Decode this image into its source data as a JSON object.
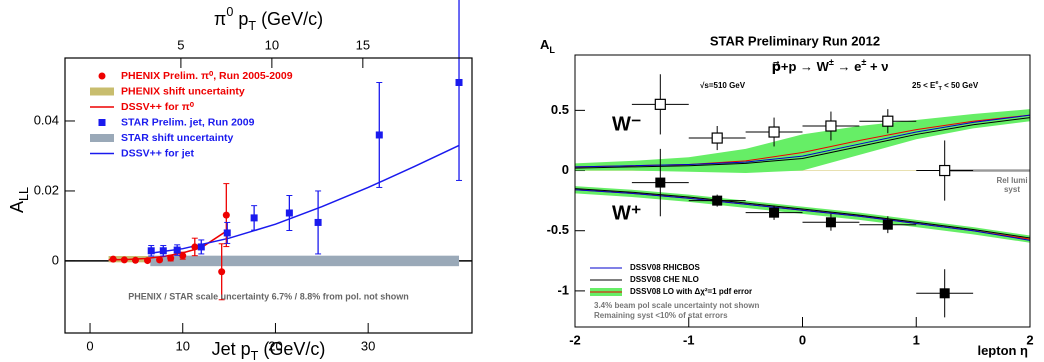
{
  "chart_data": [
    {
      "type": "scatter",
      "xlabel": {
        "text": "Jet p",
        "sub": "T",
        "tail": " (GeV/c)"
      },
      "x2label": {
        "text": "π",
        "sup": "0",
        "mid": " p",
        "sub": "T",
        "tail": " (GeV/c)"
      },
      "ylabel": {
        "text": "A",
        "sub": "LL"
      },
      "xlim": [
        -2.7,
        41.2
      ],
      "xticks": [
        0,
        10,
        20,
        30
      ],
      "x2lim": [
        -1.37,
        21.0
      ],
      "x2ticks": [
        5,
        10,
        15
      ],
      "ylim": [
        -0.0206,
        0.058
      ],
      "yticks": [
        0,
        0.02,
        0.04
      ],
      "zero_line": true,
      "zero_line_color": "#000000",
      "legend": "upper left",
      "note": "PHENIX / STAR scale uncertainty 6.7% / 8.8% from pol. not shown",
      "series": [
        {
          "name": "PHENIX Prelim. π⁰, Run 2005-2009",
          "kind": "points",
          "marker": "circle",
          "color": "#ee0000",
          "label_color": "#ee0000",
          "x": [
            2.5,
            3.7,
            4.9,
            6.2,
            7.5,
            8.7,
            10,
            11.3,
            14.2,
            14.7
          ],
          "values": [
            0.0005,
            0.0003,
            0.0002,
            0.0001,
            0.0003,
            0.0008,
            0.0015,
            0.004,
            -0.0031,
            0.0131
          ],
          "errors": [
            0.0002,
            0.0002,
            0.0003,
            0.0004,
            0.0005,
            0.0008,
            0.001,
            0.0025,
            0.008,
            0.009
          ]
        },
        {
          "name": "PHENIX shift uncertainty",
          "kind": "band",
          "color": "#c8bd6e",
          "label_color": "#ee0000",
          "x": [
            2,
            17.5
          ],
          "low": -0.0004,
          "high": 0.0014
        },
        {
          "name": "DSSV++ for π⁰",
          "kind": "line",
          "color": "#ee0000",
          "label_color": "#ee0000",
          "x": [
            2,
            4,
            6,
            8,
            10,
            12,
            14.7
          ],
          "values": [
            0.0003,
            0.0004,
            0.0007,
            0.0013,
            0.0023,
            0.0038,
            0.0085
          ]
        },
        {
          "name": "STAR Prelim. jet, Run 2009",
          "kind": "points",
          "marker": "square",
          "color": "#1a1aee",
          "label_color": "#1a1aee",
          "x": [
            6.6,
            7.9,
            9.4,
            12.0,
            14.8,
            17.7,
            21.5,
            24.6,
            31.2,
            39.8
          ],
          "values": [
            0.0029,
            0.0029,
            0.0031,
            0.004,
            0.008,
            0.0123,
            0.0137,
            0.011,
            0.036,
            0.051
          ],
          "errors": [
            0.0015,
            0.0015,
            0.0015,
            0.002,
            0.003,
            0.0035,
            0.005,
            0.009,
            0.015,
            0.028
          ]
        },
        {
          "name": "STAR shift uncertainty",
          "kind": "band",
          "color": "#9aa9b8",
          "label_color": "#1a1aee",
          "x": [
            6.5,
            39.8
          ],
          "low": -0.0015,
          "high": 0.0015
        },
        {
          "name": "DSSV++ for jet",
          "kind": "line",
          "color": "#1a1aee",
          "label_color": "#1a1aee",
          "x": [
            6.5,
            10,
            15,
            20,
            25,
            30,
            35,
            39.8
          ],
          "values": [
            0.0022,
            0.0035,
            0.0065,
            0.0105,
            0.0155,
            0.021,
            0.027,
            0.033
          ]
        }
      ]
    },
    {
      "type": "scatter",
      "title": "STAR   Preliminary   Run 2012",
      "xlabel": {
        "text": "lepton η"
      },
      "ylabel": {
        "text": "A",
        "sub": "L"
      },
      "reaction": {
        "text": "p⃗+p → W",
        "sup": "±",
        "mid": " → e",
        "sup2": "±",
        "tail": " + ν"
      },
      "energy": {
        "text": "√s=510 GeV"
      },
      "cut": {
        "text": "25 < E",
        "sup": "e",
        "sub": "T",
        "tail": " < 50 GeV"
      },
      "xlim": [
        -2,
        2
      ],
      "xticks": [
        -2,
        -1,
        0,
        1,
        2
      ],
      "ylim": [
        -1.3,
        0.96
      ],
      "yticks": [
        -1,
        -0.5,
        0,
        0.5
      ],
      "zero_line": true,
      "zero_line_color": "#e8e0b0",
      "legend": "lower left",
      "notes": [
        "3.4% beam pol scale uncertainty not shown",
        "Remaining syst <10% of stat errors"
      ],
      "rel_lumi": {
        "label": [
          "Rel lumi",
          "syst"
        ],
        "x": [
          1.3,
          2
        ],
        "low": -0.01,
        "high": 0.01,
        "color": "#999999"
      },
      "series": [
        {
          "name": "W⁻",
          "kind": "points",
          "marker": "open-square",
          "color": "#000000",
          "x": [
            -1.25,
            -0.75,
            -0.25,
            0.25,
            0.75,
            1.25
          ],
          "xerrors": [
            0.25,
            0.25,
            0.25,
            0.25,
            0.25,
            0.25
          ],
          "values": [
            0.55,
            0.27,
            0.32,
            0.37,
            0.41,
            0.0
          ],
          "errors": [
            0.25,
            0.1,
            0.12,
            0.12,
            0.1,
            0.25
          ]
        },
        {
          "name": "W⁺",
          "kind": "points",
          "marker": "square",
          "color": "#000000",
          "x": [
            -1.25,
            -0.75,
            -0.25,
            0.25,
            0.75,
            1.25
          ],
          "xerrors": [
            0.25,
            0.25,
            0.25,
            0.25,
            0.25,
            0.25
          ],
          "values": [
            -0.1,
            -0.25,
            -0.35,
            -0.43,
            -0.45,
            -1.02
          ],
          "errors": [
            0.28,
            0.05,
            0.06,
            0.07,
            0.07,
            0.2
          ]
        },
        {
          "name": "DSSV08  LO with Δχ²=1 pdf error",
          "kind": "theory-band",
          "color": "#66ee66",
          "line_color": "#ee0000",
          "x": [
            -2,
            -1.5,
            -1,
            -0.5,
            0,
            0.5,
            1,
            1.5,
            2
          ],
          "values": [
            0.03,
            0.04,
            0.05,
            0.08,
            0.15,
            0.25,
            0.34,
            0.41,
            0.46
          ],
          "errors": [
            0.03,
            0.04,
            0.06,
            0.1,
            0.15,
            0.12,
            0.08,
            0.06,
            0.05
          ],
          "values_w_plus": [
            -0.16,
            -0.19,
            -0.23,
            -0.28,
            -0.33,
            -0.38,
            -0.44,
            -0.5,
            -0.57
          ],
          "errors_w_plus": [
            0.03,
            0.03,
            0.03,
            0.03,
            0.03,
            0.03,
            0.03,
            0.03,
            0.03
          ]
        },
        {
          "name": "DSSV08  RHICBOS",
          "kind": "theory-line",
          "color": "#0000cc",
          "x": [
            -2,
            -1.5,
            -1,
            -0.5,
            0,
            0.5,
            1,
            1.5,
            2
          ],
          "values": [
            0.03,
            0.04,
            0.05,
            0.07,
            0.12,
            0.22,
            0.32,
            0.4,
            0.46
          ],
          "values_w_plus": [
            -0.16,
            -0.19,
            -0.23,
            -0.28,
            -0.33,
            -0.38,
            -0.44,
            -0.5,
            -0.58
          ]
        },
        {
          "name": "DSSV08  CHE NLO",
          "kind": "theory-line",
          "color": "#000000",
          "x": [
            -2,
            -1.5,
            -1,
            -0.5,
            0,
            0.5,
            1,
            1.5,
            2
          ],
          "values": [
            0.02,
            0.03,
            0.04,
            0.06,
            0.1,
            0.2,
            0.3,
            0.38,
            0.44
          ],
          "values_w_plus": [
            -0.15,
            -0.18,
            -0.22,
            -0.27,
            -0.32,
            -0.37,
            -0.43,
            -0.49,
            -0.56
          ]
        }
      ]
    }
  ]
}
